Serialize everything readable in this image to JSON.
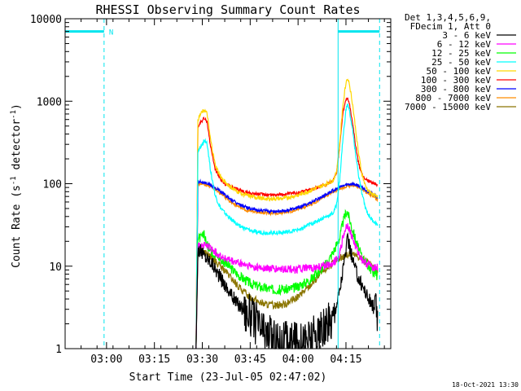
{
  "chart_data": {
    "type": "line",
    "title": "RHESSI Observing Summary Count Rates",
    "xlabel": "Start Time (23-Jul-05 02:47:02)",
    "ylabel_parts": [
      "Count Rate (s",
      "-1",
      " detector",
      "-1",
      ")"
    ],
    "ylabel": "Count Rate (s-1 detector-1)",
    "x_unit": "minutes after 02:47:02",
    "xlim": [
      0,
      102
    ],
    "ylim": [
      1,
      10000
    ],
    "yscale": "log",
    "x_ticks": [
      {
        "label": "03:00",
        "x": 12.97
      },
      {
        "label": "03:15",
        "x": 27.97
      },
      {
        "label": "03:30",
        "x": 42.97
      },
      {
        "label": "03:45",
        "x": 57.97
      },
      {
        "label": "04:00",
        "x": 72.97
      },
      {
        "label": "04:15",
        "x": 87.97
      }
    ],
    "y_ticks": [
      {
        "label": "1",
        "y": 1
      },
      {
        "label": "10",
        "y": 10
      },
      {
        "label": "100",
        "y": 100
      },
      {
        "label": "1000",
        "y": 1000
      },
      {
        "label": "10000",
        "y": 10000
      }
    ],
    "legend_header": [
      "Det 1,3,4,5,6,9,",
      "FDecim 1, Att 0"
    ],
    "legend_position": "right",
    "timestamp": "18-Oct-2021 13:30",
    "night_marker": {
      "label": "N",
      "level": 7000,
      "segments": [
        [
          0,
          12.2
        ],
        [
          85.5,
          98.5
        ]
      ]
    },
    "dashed_lines_x": [
      12.2,
      98.5
    ],
    "solid_lines_x": [
      0,
      85.5
    ],
    "series": [
      {
        "name": "3 - 6 keV",
        "color": "#000000",
        "x": [
          41,
          41.6,
          42.5,
          44,
          46,
          48,
          50,
          52,
          54,
          56,
          58,
          60,
          62,
          64,
          66,
          68,
          70,
          72,
          74,
          76,
          78,
          80,
          82,
          84,
          86,
          87,
          88,
          88.5,
          89,
          90,
          91,
          92,
          93,
          94,
          95,
          96,
          97,
          98
        ],
        "values": [
          1,
          16,
          15,
          13,
          11,
          8,
          6,
          4.5,
          3.5,
          3,
          2.5,
          2,
          1.6,
          1.4,
          1.3,
          1.2,
          1.2,
          1.2,
          1.2,
          1.3,
          1.4,
          1.5,
          1.8,
          2.5,
          5,
          9,
          16,
          21,
          18,
          12,
          9,
          7,
          6,
          5,
          4,
          3.5,
          3,
          2.5
        ]
      },
      {
        "name": "6 - 12 keV",
        "color": "#ff00ff",
        "x": [
          41,
          41.6,
          42.5,
          44,
          46,
          48,
          50,
          52,
          54,
          56,
          58,
          60,
          62,
          64,
          66,
          68,
          70,
          72,
          74,
          76,
          78,
          80,
          82,
          84,
          86,
          87,
          88,
          88.5,
          89,
          90,
          91,
          92,
          93,
          94,
          95,
          96,
          97,
          98
        ],
        "values": [
          1,
          17,
          18,
          18,
          16,
          14,
          12.5,
          11.5,
          11,
          10.5,
          10,
          9.7,
          9.5,
          9.3,
          9.2,
          9.2,
          9.2,
          9.2,
          9.3,
          9.4,
          9.5,
          9.8,
          10.3,
          11,
          14,
          22,
          30,
          32,
          28,
          22,
          17,
          14,
          12,
          11,
          10.5,
          10,
          9.8,
          9.5
        ]
      },
      {
        "name": "12 - 25 keV",
        "color": "#00ff00",
        "x": [
          41,
          41.6,
          42.5,
          43.5,
          44.5,
          46,
          48,
          50,
          52,
          54,
          56,
          58,
          60,
          62,
          64,
          66,
          68,
          70,
          72,
          74,
          76,
          78,
          80,
          82,
          84,
          86,
          87,
          88,
          88.5,
          89,
          90,
          91,
          92,
          93,
          94,
          95,
          96,
          97,
          98
        ],
        "values": [
          1,
          22,
          22,
          24,
          18,
          15,
          13,
          11,
          9.5,
          8,
          7,
          6.2,
          5.8,
          5.5,
          5.3,
          5.2,
          5.2,
          5.3,
          5.5,
          6,
          6.6,
          7.5,
          9,
          11,
          15,
          22,
          34,
          45,
          46,
          38,
          28,
          21,
          16,
          13,
          11.5,
          10,
          9,
          8.2,
          7.5
        ]
      },
      {
        "name": "25 - 50 keV",
        "color": "#00ffff",
        "x": [
          41,
          41.6,
          42.5,
          43.5,
          44.5,
          45.5,
          47,
          48.5,
          50,
          52,
          54,
          56,
          58,
          60,
          62,
          64,
          66,
          68,
          70,
          72,
          74,
          76,
          78,
          80,
          82,
          84,
          85,
          86,
          87,
          88,
          88.5,
          89,
          90,
          91,
          92,
          93,
          94,
          95,
          96,
          97,
          98
        ],
        "values": [
          1,
          240,
          280,
          330,
          310,
          150,
          72,
          52,
          44,
          37,
          32,
          29,
          27,
          26,
          25.5,
          25.5,
          25.5,
          25.7,
          26,
          27,
          28.5,
          31,
          34,
          37,
          40,
          44,
          55,
          110,
          340,
          800,
          920,
          780,
          460,
          230,
          120,
          75,
          52,
          42,
          37,
          34,
          31
        ]
      },
      {
        "name": "50 - 100 keV",
        "color": "#ffd700",
        "x": [
          41,
          41.6,
          42.5,
          43.5,
          44.5,
          45.5,
          47,
          48.5,
          50,
          52,
          54,
          56,
          58,
          60,
          62,
          64,
          66,
          68,
          70,
          72,
          74,
          76,
          78,
          80,
          82,
          84,
          85,
          86,
          87,
          88,
          88.5,
          89,
          90,
          91,
          92,
          93,
          94,
          95,
          96,
          97,
          98
        ],
        "values": [
          1,
          600,
          700,
          790,
          700,
          350,
          170,
          125,
          105,
          90,
          80,
          74,
          70,
          68,
          66,
          65.5,
          65.5,
          66,
          68,
          71,
          75,
          80,
          86,
          92,
          100,
          110,
          140,
          300,
          900,
          1700,
          1950,
          1650,
          950,
          460,
          220,
          130,
          95,
          82,
          76,
          72,
          68
        ]
      },
      {
        "name": "100 - 300 keV",
        "color": "#ff0000",
        "x": [
          41,
          41.6,
          42.5,
          43.5,
          44.5,
          45.5,
          47,
          48.5,
          50,
          52,
          54,
          56,
          58,
          60,
          62,
          64,
          66,
          68,
          70,
          72,
          74,
          76,
          78,
          80,
          82,
          84,
          85,
          86,
          87,
          88,
          88.5,
          89,
          90,
          91,
          92,
          93,
          94,
          95,
          96,
          97,
          98
        ],
        "values": [
          1,
          480,
          560,
          620,
          560,
          290,
          150,
          115,
          100,
          91,
          85,
          80,
          77,
          75,
          74,
          73.5,
          73.5,
          74,
          75,
          77,
          80,
          84,
          88,
          93,
          100,
          110,
          135,
          280,
          700,
          1050,
          1080,
          950,
          560,
          290,
          170,
          130,
          115,
          108,
          104,
          100,
          97
        ]
      },
      {
        "name": "300 - 800 keV",
        "color": "#0000ff",
        "x": [
          41,
          41.6,
          42.5,
          44,
          46,
          48,
          50,
          52,
          54,
          56,
          58,
          60,
          62,
          64,
          66,
          68,
          70,
          72,
          74,
          76,
          78,
          80,
          82,
          84,
          86,
          88,
          90,
          92,
          94,
          96,
          98
        ],
        "values": [
          1,
          105,
          106,
          102,
          95,
          84,
          73,
          64,
          57,
          53,
          50,
          48,
          47,
          46.5,
          46.5,
          47,
          48,
          50,
          53,
          57,
          62,
          68,
          75,
          83,
          90,
          97,
          100,
          95,
          85,
          76,
          68
        ]
      },
      {
        "name": "800 - 7000 keV",
        "color": "#ff8c00",
        "x": [
          41,
          41.6,
          42.5,
          44,
          46,
          48,
          50,
          52,
          54,
          56,
          58,
          60,
          62,
          64,
          66,
          68,
          70,
          72,
          74,
          76,
          78,
          80,
          82,
          84,
          86,
          88,
          90,
          92,
          94,
          96,
          98
        ],
        "values": [
          1,
          98,
          100,
          97,
          91,
          80,
          69,
          60,
          53,
          49,
          46.5,
          45,
          44.5,
          44,
          44,
          44.5,
          45.5,
          47.5,
          50.5,
          54.5,
          59,
          65,
          72,
          80,
          87,
          93,
          96,
          91,
          81,
          72,
          64
        ]
      },
      {
        "name": "7000 - 15000 keV",
        "color": "#8b7500",
        "x": [
          41,
          41.6,
          42.5,
          44,
          46,
          48,
          50,
          52,
          54,
          56,
          58,
          60,
          62,
          64,
          66,
          68,
          70,
          72,
          74,
          76,
          78,
          80,
          82,
          84,
          86,
          88,
          90,
          92,
          94,
          96,
          98
        ],
        "values": [
          1,
          15,
          16,
          14.5,
          12.5,
          10.5,
          8.8,
          7.2,
          5.8,
          4.9,
          4.2,
          3.8,
          3.5,
          3.4,
          3.35,
          3.4,
          3.6,
          4,
          4.6,
          5.5,
          6.6,
          8,
          9.5,
          11,
          12.5,
          13.5,
          14,
          13,
          11.5,
          10,
          8.5
        ]
      }
    ]
  }
}
